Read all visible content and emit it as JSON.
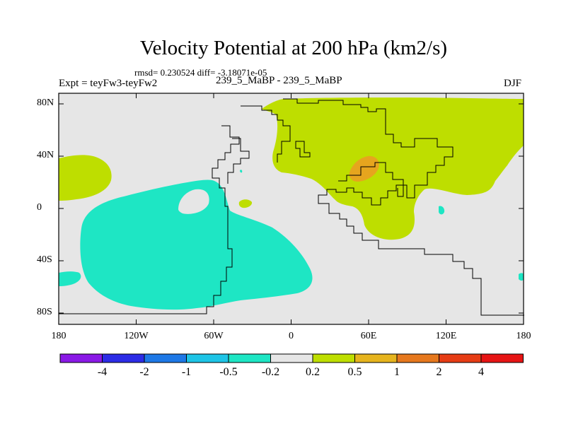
{
  "title": "Velocity Potential at 200 hPa (km2/s)",
  "stats": "rmsd= 0.230524 diff= -3.18071e-05",
  "expt": "Expt = teyFw3-teyFw2",
  "period": "239_5_MaBP - 239_5_MaBP",
  "season": "DJF",
  "y_axis": {
    "ticks": [
      {
        "label": "80N",
        "value": 80
      },
      {
        "label": "40N",
        "value": 40
      },
      {
        "label": "0",
        "value": 0
      },
      {
        "label": "40S",
        "value": -40
      },
      {
        "label": "80S",
        "value": -80
      }
    ]
  },
  "x_axis": {
    "ticks": [
      {
        "label": "180",
        "value": -180
      },
      {
        "label": "120W",
        "value": -120
      },
      {
        "label": "60W",
        "value": -60
      },
      {
        "label": "0",
        "value": 0
      },
      {
        "label": "60E",
        "value": 60
      },
      {
        "label": "120E",
        "value": 120
      },
      {
        "label": "180",
        "value": 180
      }
    ]
  },
  "colorbar": {
    "colors": [
      "#8a19e6",
      "#2c2ce6",
      "#1e78e6",
      "#1ec4e6",
      "#1ee6c4",
      "#e6e6e6",
      "#bede00",
      "#e6b41e",
      "#e6781e",
      "#e63c14",
      "#e61414"
    ],
    "labels": [
      "-4",
      "-2",
      "-1",
      "-0.5",
      "-0.2",
      "0.2",
      "0.5",
      "1",
      "2",
      "4"
    ]
  },
  "map_colors": {
    "background": "#e6e6e6",
    "positive": "#bede00",
    "negative": "#1ee6c4",
    "strong_positive": "#e6a51e"
  }
}
